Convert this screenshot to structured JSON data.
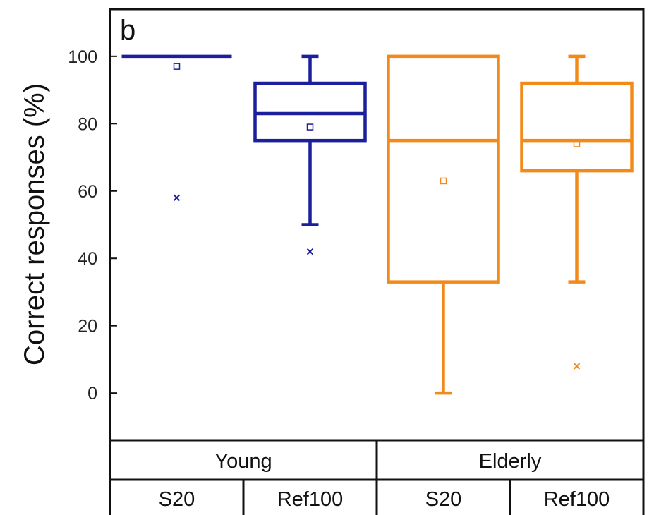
{
  "chart_data": {
    "type": "box",
    "panel_label": "b",
    "ylabel": "Correct responses (%)",
    "ylim": [
      -14,
      114
    ],
    "yticks": [
      0,
      20,
      40,
      60,
      80,
      100
    ],
    "groups": [
      {
        "label": "Young",
        "color": "#1b1f9c"
      },
      {
        "label": "Elderly",
        "color": "#f28a1a"
      }
    ],
    "boxes": [
      {
        "group": "Young",
        "label": "S20",
        "color": "#1b1f9c",
        "whisker_low": 100,
        "q1": 100,
        "median": 100,
        "q3": 100,
        "whisker_high": 100,
        "mean": 97,
        "outliers": [
          58
        ],
        "extremes": [
          100
        ]
      },
      {
        "group": "Young",
        "label": "Ref100",
        "color": "#1b1f9c",
        "whisker_low": 50,
        "q1": 75,
        "median": 83,
        "q3": 92,
        "whisker_high": 100,
        "mean": 79,
        "outliers": [
          42
        ],
        "extremes": []
      },
      {
        "group": "Elderly",
        "label": "S20",
        "color": "#f28a1a",
        "whisker_low": 0,
        "q1": 33,
        "median": 75,
        "q3": 100,
        "whisker_high": 100,
        "mean": 63,
        "outliers": [],
        "extremes": []
      },
      {
        "group": "Elderly",
        "label": "Ref100",
        "color": "#f28a1a",
        "whisker_low": 33,
        "q1": 66,
        "median": 75,
        "q3": 92,
        "whisker_high": 100,
        "mean": 74,
        "outliers": [
          8
        ],
        "extremes": []
      }
    ]
  }
}
